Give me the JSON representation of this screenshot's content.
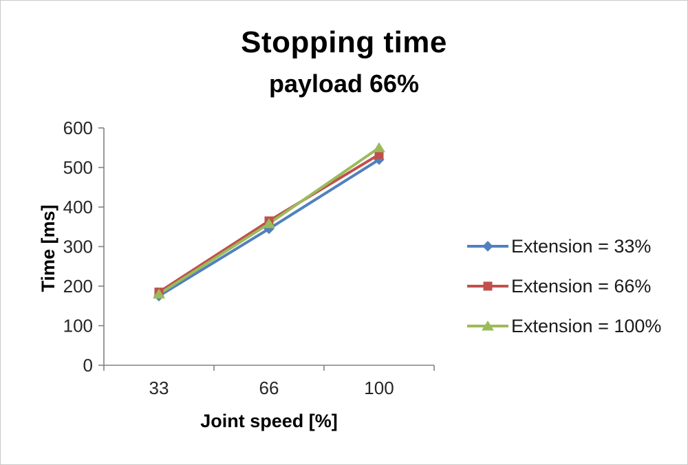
{
  "chart": {
    "title": "Stopping time",
    "subtitle": "payload 66%",
    "xlabel": "Joint speed [%]",
    "ylabel": "Time [ms]"
  },
  "chart_data": {
    "type": "line",
    "title": "Stopping time",
    "subtitle": "payload 66%",
    "xlabel": "Joint speed [%]",
    "ylabel": "Time [ms]",
    "categories": [
      "33",
      "66",
      "100"
    ],
    "series": [
      {
        "name": "Extension = 33%",
        "values": [
          175,
          345,
          520
        ],
        "color": "#4F81BD",
        "marker": "diamond"
      },
      {
        "name": "Extension = 66%",
        "values": [
          185,
          365,
          533
        ],
        "color": "#C0504D",
        "marker": "square"
      },
      {
        "name": "Extension = 100%",
        "values": [
          180,
          358,
          550
        ],
        "color": "#9BBB59",
        "marker": "triangle"
      }
    ],
    "ylim": [
      0,
      600
    ],
    "yticks": [
      0,
      100,
      200,
      300,
      400,
      500,
      600
    ],
    "grid": false,
    "legend_position": "right",
    "axis_color": "#808080",
    "tick_label_color": "#262626"
  }
}
